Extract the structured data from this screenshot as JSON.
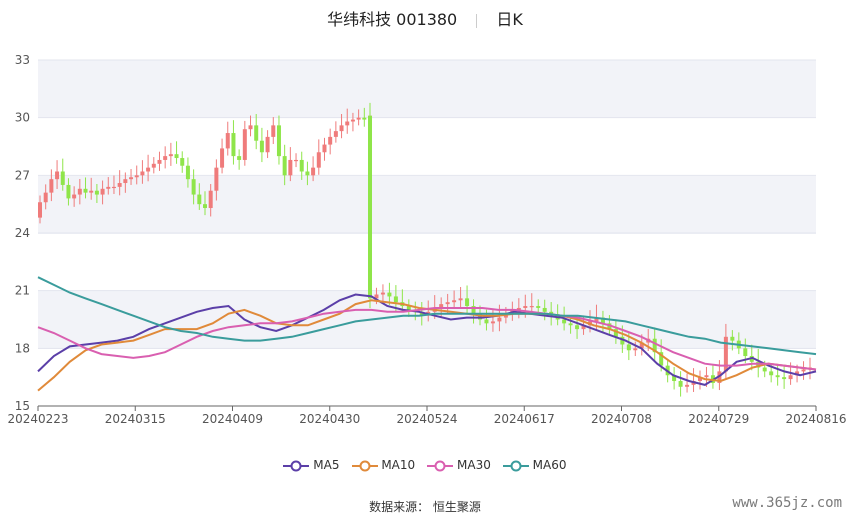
{
  "title": {
    "name": "华纬科技 001380",
    "period": "日K"
  },
  "source_label": "数据来源：",
  "source_name": "恒生聚源",
  "watermark": "www.365jz.com",
  "chart_data": {
    "type": "candlestick",
    "title": "华纬科技 001380",
    "ylim": [
      15,
      33
    ],
    "y_ticks": [
      15,
      18,
      21,
      24,
      27,
      30,
      33
    ],
    "x_ticks": [
      "20240223",
      "20240315",
      "20240409",
      "20240430",
      "20240524",
      "20240617",
      "20240708",
      "20240729",
      "20240816"
    ],
    "colors": {
      "up": "#ef7b7b",
      "down": "#8fe54a"
    },
    "close_series": [
      25.6,
      26.1,
      26.8,
      27.2,
      26.5,
      25.8,
      26.0,
      26.3,
      26.1,
      26.2,
      26.0,
      26.3,
      26.4,
      26.4,
      26.6,
      26.8,
      26.9,
      27.0,
      27.2,
      27.4,
      27.6,
      27.8,
      28.0,
      28.1,
      27.9,
      27.5,
      26.8,
      26.0,
      25.5,
      25.3,
      26.2,
      27.4,
      28.4,
      29.2,
      28.0,
      27.8,
      29.4,
      29.6,
      28.8,
      28.2,
      29.0,
      29.6,
      28.0,
      27.0,
      27.8,
      27.8,
      27.2,
      27.0,
      27.4,
      28.2,
      28.6,
      29.0,
      29.3,
      29.6,
      29.8,
      29.9,
      30.0,
      29.9,
      30.1,
      20.6,
      20.8,
      20.9,
      20.7,
      20.4,
      20.2,
      20.0,
      19.9,
      19.7,
      19.9,
      20.1,
      20.3,
      20.4,
      20.5,
      20.6,
      20.2,
      19.8,
      19.5,
      19.3,
      19.4,
      19.6,
      19.8,
      20.0,
      20.1,
      20.2,
      20.2,
      20.1,
      19.9,
      19.7,
      19.5,
      19.3,
      19.2,
      19.0,
      19.2,
      19.4,
      19.6,
      19.3,
      19.0,
      18.6,
      18.2,
      17.9,
      18.0,
      18.3,
      18.5,
      17.8,
      17.1,
      16.6,
      16.3,
      16.0,
      16.1,
      16.3,
      16.5,
      16.6,
      16.2,
      16.8,
      18.6,
      18.4,
      18.0,
      17.6,
      17.3,
      17.0,
      16.8,
      16.6,
      16.5,
      16.4,
      16.6,
      16.8,
      16.9,
      17.0
    ],
    "series": [
      {
        "name": "MA5",
        "color": "#5b3fa8",
        "values": [
          16.8,
          17.6,
          18.1,
          18.2,
          18.3,
          18.4,
          18.6,
          19.0,
          19.3,
          19.6,
          19.9,
          20.1,
          20.2,
          19.5,
          19.1,
          18.9,
          19.2,
          19.6,
          20.0,
          20.5,
          20.8,
          20.7,
          20.2,
          20.0,
          19.9,
          19.7,
          19.5,
          19.6,
          19.6,
          19.7,
          19.9,
          19.8,
          19.7,
          19.6,
          19.3,
          19.0,
          18.7,
          18.4,
          18.0,
          17.2,
          16.6,
          16.3,
          16.1,
          16.6,
          17.3,
          17.5,
          17.1,
          16.8,
          16.6,
          16.8
        ]
      },
      {
        "name": "MA10",
        "color": "#e08a3a",
        "values": [
          15.8,
          16.5,
          17.3,
          17.9,
          18.2,
          18.3,
          18.4,
          18.7,
          19.0,
          19.0,
          19.0,
          19.3,
          19.8,
          20.0,
          19.7,
          19.3,
          19.2,
          19.2,
          19.5,
          19.8,
          20.3,
          20.5,
          20.4,
          20.3,
          20.1,
          20.0,
          19.9,
          19.8,
          19.7,
          19.7,
          19.8,
          19.8,
          19.8,
          19.7,
          19.5,
          19.2,
          19.0,
          18.7,
          18.3,
          17.8,
          17.2,
          16.7,
          16.4,
          16.3,
          16.6,
          17.0,
          17.2,
          17.1,
          17.0,
          16.9
        ]
      },
      {
        "name": "MA30",
        "color": "#d95fb0",
        "values": [
          19.1,
          18.8,
          18.4,
          18.0,
          17.7,
          17.6,
          17.5,
          17.6,
          17.8,
          18.2,
          18.6,
          18.9,
          19.1,
          19.2,
          19.3,
          19.3,
          19.4,
          19.6,
          19.8,
          19.9,
          20.0,
          20.0,
          19.9,
          19.9,
          20.0,
          20.1,
          20.1,
          20.1,
          20.1,
          20.0,
          20.0,
          19.9,
          19.8,
          19.7,
          19.6,
          19.4,
          19.2,
          18.9,
          18.6,
          18.2,
          17.8,
          17.5,
          17.2,
          17.1,
          17.1,
          17.2,
          17.2,
          17.1,
          17.0,
          16.9
        ]
      },
      {
        "name": "MA60",
        "color": "#3a9c9c",
        "values": [
          21.7,
          21.3,
          20.9,
          20.6,
          20.3,
          20.0,
          19.7,
          19.4,
          19.1,
          18.9,
          18.8,
          18.6,
          18.5,
          18.4,
          18.4,
          18.5,
          18.6,
          18.8,
          19.0,
          19.2,
          19.4,
          19.5,
          19.6,
          19.7,
          19.7,
          19.8,
          19.8,
          19.8,
          19.8,
          19.8,
          19.8,
          19.8,
          19.8,
          19.7,
          19.7,
          19.6,
          19.5,
          19.4,
          19.2,
          19.0,
          18.8,
          18.6,
          18.5,
          18.3,
          18.2,
          18.1,
          18.0,
          17.9,
          17.8,
          17.7
        ]
      }
    ]
  }
}
